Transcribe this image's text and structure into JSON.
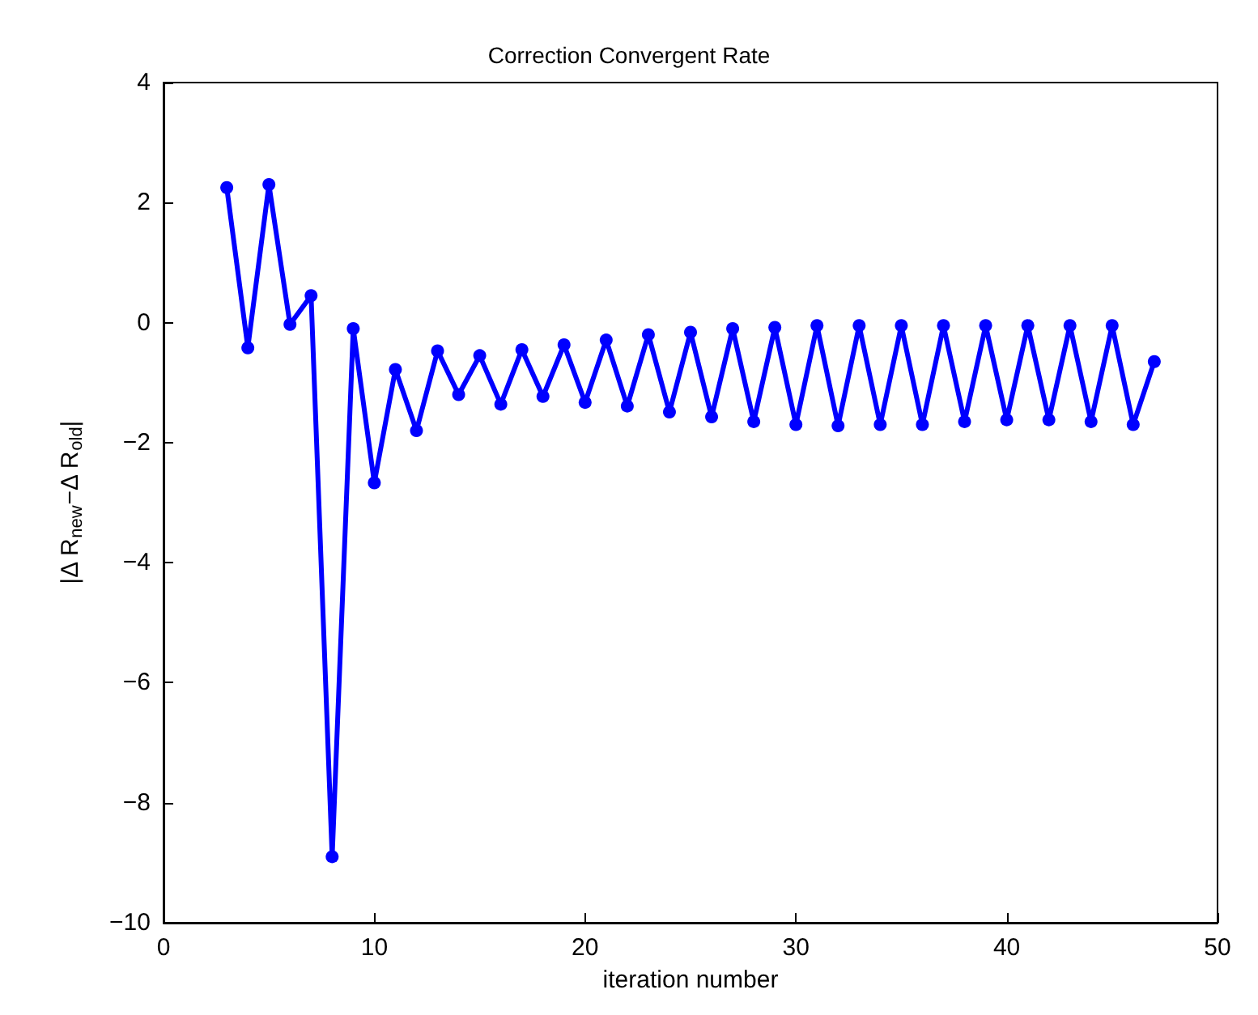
{
  "chart_data": {
    "type": "line",
    "title": "Correction Convergent Rate",
    "xlabel": "iteration number",
    "ylabel": "|Δ R$_{new}$−Δ R$_{old}$|",
    "x": [
      3,
      4,
      5,
      6,
      7,
      8,
      9,
      10,
      11,
      12,
      13,
      14,
      15,
      16,
      17,
      18,
      19,
      20,
      21,
      22,
      23,
      24,
      25,
      26,
      27,
      28,
      29,
      30,
      31,
      32,
      33,
      34,
      35,
      36,
      37,
      38,
      39,
      40,
      41,
      42,
      43,
      44,
      45,
      46,
      47
    ],
    "series": [
      {
        "color": "#0000ff",
        "values": [
          2.25,
          -0.42,
          2.3,
          -0.03,
          0.45,
          -8.9,
          -0.1,
          -2.67,
          -0.78,
          -1.8,
          -0.47,
          -1.2,
          -0.55,
          -1.36,
          -0.45,
          -1.23,
          -0.37,
          -1.33,
          -0.29,
          -1.39,
          -0.2,
          -1.49,
          -0.16,
          -1.57,
          -0.1,
          -1.65,
          -0.08,
          -1.7,
          -0.05,
          -1.72,
          -0.05,
          -1.7,
          -0.05,
          -1.7,
          -0.05,
          -1.65,
          -0.05,
          -1.62,
          -0.05,
          -1.62,
          -0.05,
          -1.65,
          -0.05,
          -1.7,
          -0.65
        ]
      }
    ],
    "xlim": [
      0,
      50
    ],
    "xticks": [
      0,
      10,
      20,
      30,
      40,
      50
    ],
    "ylim": [
      -10,
      4
    ],
    "yticks": [
      -10,
      -8,
      -6,
      -4,
      -2,
      0,
      2,
      4
    ],
    "marker": "circle",
    "line_style": "solid"
  }
}
